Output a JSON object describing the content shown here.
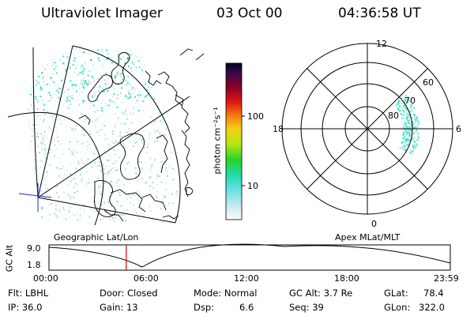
{
  "header": {
    "instrument": "Ultraviolet Imager",
    "date": "03 Oct 00",
    "time": "04:36:58 UT"
  },
  "colorbar": {
    "unit_label": "photon cm⁻²s⁻¹",
    "ticks": [
      "100",
      "10"
    ]
  },
  "left_map": {
    "caption": "Geographic Lat/Lon"
  },
  "polar_plot": {
    "caption": "Apex MLat/MLT",
    "mlt_labels": [
      "12",
      "18",
      "6",
      "0"
    ],
    "lat_labels": [
      "60",
      "70",
      "80"
    ]
  },
  "gc_alt_plot": {
    "ylabel": "GC Alt",
    "y_ticks": [
      "9.0",
      "1.8"
    ],
    "x_ticks": [
      "00:00",
      "06:00",
      "12:00",
      "18:00",
      "23:59"
    ],
    "marker_time": "04:37"
  },
  "status": {
    "filter": "Flt: LBHL",
    "ip": "IP: 36.0",
    "door": "Door: Closed",
    "gain": "Gain: 13",
    "mode": "Mode: Normal",
    "dsp_label": "Dsp:",
    "dsp_value": "6.6",
    "gc_alt": "GC Alt: 3.7 Re",
    "seq": "Seq: 39",
    "glat_label": "GLat:",
    "glat_value": "78.4",
    "glon_label": "GLon:",
    "glon_value": "322.0"
  },
  "colors": {
    "marker": "#e00000",
    "cyan": "#30e8c8",
    "green": "#22dd44"
  }
}
